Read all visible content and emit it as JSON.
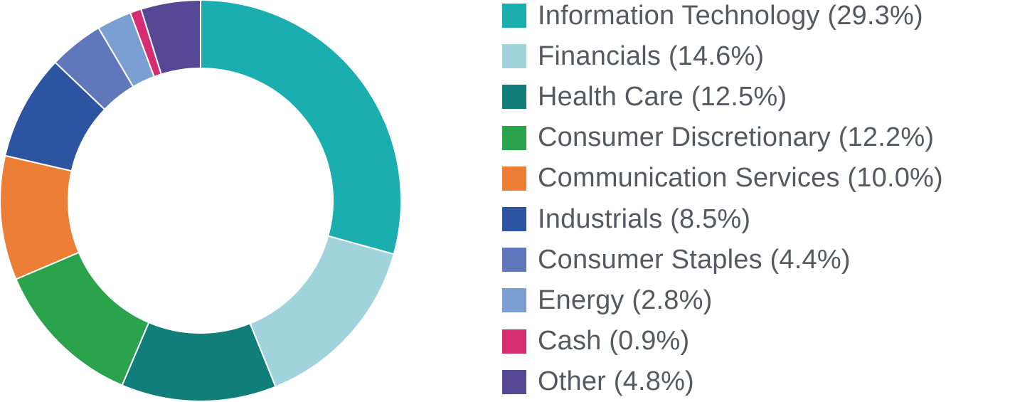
{
  "chart_data": {
    "type": "pie",
    "variant": "donut",
    "title": "",
    "legend_position": "right",
    "slices": [
      {
        "label": "Information Technology (29.3%)",
        "value": 29.3,
        "color": "#1aafae"
      },
      {
        "label": "Financials (14.6%)",
        "value": 14.6,
        "color": "#a1d3dc"
      },
      {
        "label": "Health Care (12.5%)",
        "value": 12.5,
        "color": "#127e79"
      },
      {
        "label": "Consumer Discretionary (12.2%)",
        "value": 12.2,
        "color": "#2ba24c"
      },
      {
        "label": "Communication Services (10.0%)",
        "value": 10.0,
        "color": "#ec7f35"
      },
      {
        "label": "Industrials (8.5%)",
        "value": 8.5,
        "color": "#2c54a0"
      },
      {
        "label": "Consumer Staples (4.4%)",
        "value": 4.4,
        "color": "#6078bb"
      },
      {
        "label": "Energy (2.8%)",
        "value": 2.8,
        "color": "#7b9fd2"
      },
      {
        "label": "Cash (0.9%)",
        "value": 0.9,
        "color": "#d52c72"
      },
      {
        "label": "Other (4.8%)",
        "value": 4.8,
        "color": "#574896"
      }
    ]
  }
}
